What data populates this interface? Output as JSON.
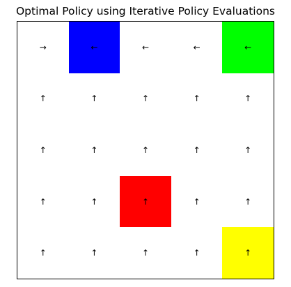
{
  "title": "Optimal Policy using Iterative Policy Evaluations",
  "grid": {
    "rows": 5,
    "cols": 5,
    "cells": [
      [
        {
          "arrow": "→",
          "color": ""
        },
        {
          "arrow": "←",
          "color": "#0000ff"
        },
        {
          "arrow": "←",
          "color": ""
        },
        {
          "arrow": "←",
          "color": ""
        },
        {
          "arrow": "←",
          "color": "#00ff00"
        }
      ],
      [
        {
          "arrow": "↑",
          "color": ""
        },
        {
          "arrow": "↑",
          "color": ""
        },
        {
          "arrow": "↑",
          "color": ""
        },
        {
          "arrow": "↑",
          "color": ""
        },
        {
          "arrow": "↑",
          "color": ""
        }
      ],
      [
        {
          "arrow": "↑",
          "color": ""
        },
        {
          "arrow": "↑",
          "color": ""
        },
        {
          "arrow": "↑",
          "color": ""
        },
        {
          "arrow": "↑",
          "color": ""
        },
        {
          "arrow": "↑",
          "color": ""
        }
      ],
      [
        {
          "arrow": "↑",
          "color": ""
        },
        {
          "arrow": "↑",
          "color": ""
        },
        {
          "arrow": "↑",
          "color": "#ff0000"
        },
        {
          "arrow": "↑",
          "color": ""
        },
        {
          "arrow": "↑",
          "color": ""
        }
      ],
      [
        {
          "arrow": "↑",
          "color": ""
        },
        {
          "arrow": "↑",
          "color": ""
        },
        {
          "arrow": "↑",
          "color": ""
        },
        {
          "arrow": "↑",
          "color": ""
        },
        {
          "arrow": "↑",
          "color": "#ffff00"
        }
      ]
    ]
  }
}
